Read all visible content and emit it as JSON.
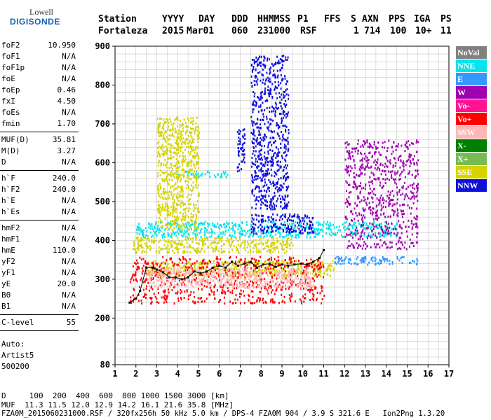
{
  "logo": {
    "line1": "Lowell",
    "line2": "DIGISONDE"
  },
  "header": {
    "labels": [
      "Station",
      "YYYY",
      "DAY",
      "DDD",
      "HHMMSS",
      "P1",
      "FFS",
      "S",
      "AXN",
      "PPS",
      "IGA",
      "PS"
    ],
    "values": [
      "Fortaleza",
      "2015",
      "Mar01",
      "060",
      "231000",
      "RSF",
      "1",
      "714",
      "100",
      "10+",
      "11"
    ]
  },
  "params_group1": [
    {
      "k": "foF2",
      "v": "10.950"
    },
    {
      "k": "foF1",
      "v": "N/A"
    },
    {
      "k": "foF1p",
      "v": "N/A"
    },
    {
      "k": "foE",
      "v": "N/A"
    },
    {
      "k": "foEp",
      "v": "0.46"
    },
    {
      "k": "fxI",
      "v": "4.50"
    },
    {
      "k": "foEs",
      "v": "N/A"
    },
    {
      "k": "fmin",
      "v": "1.70"
    }
  ],
  "params_group2": [
    {
      "k": "MUF(D)",
      "v": "35.81"
    },
    {
      "k": "M(D)",
      "v": "3.27"
    },
    {
      "k": "D",
      "v": "N/A"
    }
  ],
  "params_group3": [
    {
      "k": "h`F",
      "v": "240.0"
    },
    {
      "k": "h`F2",
      "v": "240.0"
    },
    {
      "k": "h`E",
      "v": "N/A"
    },
    {
      "k": "h`Es",
      "v": "N/A"
    }
  ],
  "params_group4": [
    {
      "k": "hmF2",
      "v": "N/A"
    },
    {
      "k": "hmF1",
      "v": "N/A"
    },
    {
      "k": "hmE",
      "v": "110.0"
    },
    {
      "k": "yF2",
      "v": "N/A"
    },
    {
      "k": "yF1",
      "v": "N/A"
    },
    {
      "k": "yE",
      "v": "20.0"
    },
    {
      "k": "B0",
      "v": "N/A"
    },
    {
      "k": "B1",
      "v": "N/A"
    }
  ],
  "params_group5": [
    {
      "k": "C-level",
      "v": "55"
    }
  ],
  "auto": {
    "line1": "Auto:",
    "line2": "Artist5",
    "line3": "500200"
  },
  "footer": {
    "d_row": "D     100  200  400  600  800 1000 1500 3000 [km]",
    "muf_row": "MUF  11.3 11.5 12.0 12.9 14.2 16.1 21.6 35.8 [MHz]",
    "info_row": "FZA0M_2015060231000.RSF / 320fx256h 50 kHz 5.0 km / DPS-4 FZA0M 904 / 3.9 S 321.6 E   Ion2Png 1.3.20"
  },
  "legend": [
    {
      "label": "NoVal",
      "color": "#808080"
    },
    {
      "label": "NNE",
      "color": "#00e5ee"
    },
    {
      "label": "E",
      "color": "#3399ff"
    },
    {
      "label": "W",
      "color": "#a000b0"
    },
    {
      "label": "Vo-",
      "color": "#ff1493"
    },
    {
      "label": "Vo+",
      "color": "#ff0000"
    },
    {
      "label": "SSW",
      "color": "#ffb6b6"
    },
    {
      "label": "X-",
      "color": "#008000"
    },
    {
      "label": "X+",
      "color": "#77bb55"
    },
    {
      "label": "SSE",
      "color": "#d4d400"
    },
    {
      "label": "NNW",
      "color": "#1010dd"
    }
  ],
  "chart_data": {
    "type": "scatter",
    "xlim": [
      1,
      17
    ],
    "ylim": [
      80,
      900
    ],
    "x_ticks": [
      1,
      2,
      3,
      4,
      5,
      6,
      7,
      8,
      9,
      10,
      11,
      12,
      13,
      14,
      15,
      16,
      17
    ],
    "y_ticks": [
      80,
      200,
      300,
      400,
      500,
      600,
      700,
      800,
      900
    ],
    "grid": true,
    "legend_placement": "right",
    "trace_line": {
      "x": [
        1.7,
        2.0,
        2.2,
        2.5,
        2.8,
        3.0,
        3.3,
        3.6,
        3.9,
        4.2,
        4.5,
        4.8,
        5.1,
        5.4,
        5.7,
        6.0,
        6.3,
        6.6,
        6.9,
        7.2,
        7.5,
        7.8,
        8.1,
        8.4,
        8.7,
        9.0,
        9.3,
        9.6,
        9.9,
        10.2,
        10.5,
        10.8,
        11.0
      ],
      "y": [
        240,
        250,
        270,
        330,
        330,
        325,
        318,
        305,
        305,
        300,
        305,
        320,
        315,
        320,
        330,
        335,
        330,
        345,
        335,
        340,
        345,
        330,
        338,
        340,
        332,
        338,
        335,
        338,
        340,
        338,
        345,
        355,
        375
      ]
    },
    "point_clusters": [
      {
        "class": "SSE",
        "x_range": [
          2.5,
          11.5
        ],
        "y_range": [
          310,
          350
        ]
      },
      {
        "class": "Vo+",
        "x_range": [
          1.7,
          11.0
        ],
        "y_range": [
          240,
          360
        ]
      },
      {
        "class": "SSW",
        "x_range": [
          2.5,
          10.5
        ],
        "y_range": [
          280,
          330
        ]
      },
      {
        "class": "NNE",
        "x_range": [
          2.0,
          14.5
        ],
        "y_range": [
          410,
          450
        ]
      },
      {
        "class": "SSE",
        "x_range": [
          1.8,
          9.5
        ],
        "y_range": [
          370,
          410
        ]
      },
      {
        "class": "NNW",
        "x_range": [
          7.5,
          10.5
        ],
        "y_range": [
          420,
          470
        ]
      },
      {
        "class": "E",
        "x_range": [
          11.5,
          15.5
        ],
        "y_range": [
          340,
          360
        ]
      },
      {
        "class": "NNE",
        "x_range": [
          4.0,
          6.5
        ],
        "y_range": [
          565,
          580
        ]
      },
      {
        "class": "NNW",
        "x_range": [
          6.8,
          7.2
        ],
        "y_range": [
          580,
          690
        ]
      },
      {
        "class": "NNW",
        "x_range": [
          7.5,
          9.3
        ],
        "y_range": [
          480,
          880
        ]
      },
      {
        "class": "W",
        "x_range": [
          12.0,
          15.5
        ],
        "y_range": [
          380,
          660
        ]
      },
      {
        "class": "SSE",
        "x_range": [
          3.0,
          5.0
        ],
        "y_range": [
          430,
          720
        ]
      }
    ]
  }
}
